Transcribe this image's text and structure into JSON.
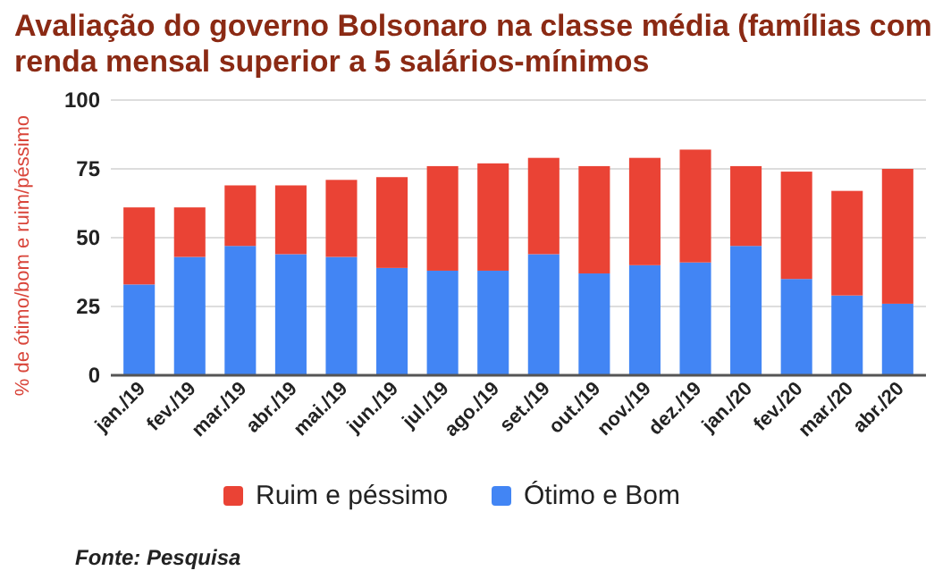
{
  "chart_data": {
    "type": "bar",
    "stacked": true,
    "title": "Avaliação do governo Bolsonaro na classe média (famílias com renda mensal superior a 5 salários-mínimos",
    "ylabel": "% de ótimo/bom e ruim/péssimo",
    "categories": [
      "jan./19",
      "fev./19",
      "mar./19",
      "abr./19",
      "mai./19",
      "jun./19",
      "jul./19",
      "ago./19",
      "set./19",
      "out./19",
      "nov./19",
      "dez./19",
      "jan./20",
      "fev./20",
      "mar./20",
      "abr./20"
    ],
    "series": [
      {
        "name": "Ótimo e Bom",
        "color": "#4285f4",
        "values": [
          33,
          43,
          47,
          44,
          43,
          39,
          38,
          38,
          44,
          37,
          40,
          41,
          47,
          35,
          29,
          26
        ]
      },
      {
        "name": "Ruim e péssimo",
        "color": "#ea4335",
        "values": [
          28,
          18,
          22,
          25,
          28,
          33,
          38,
          39,
          35,
          39,
          39,
          41,
          29,
          39,
          38,
          49
        ]
      }
    ],
    "ylim": [
      0,
      100
    ],
    "yticks": [
      0,
      25,
      50,
      75,
      100
    ],
    "grid": "y",
    "legend": "bottom",
    "annotations": [
      "Fonte: Pesquisa"
    ]
  }
}
